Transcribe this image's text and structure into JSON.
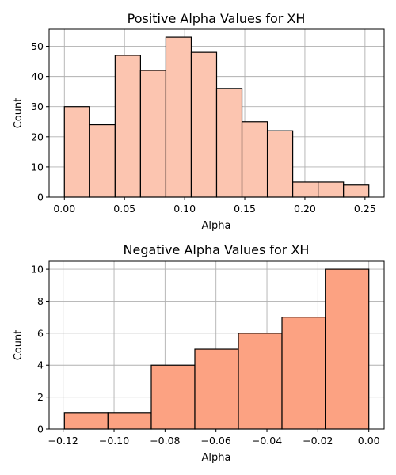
{
  "chart_data": [
    {
      "type": "bar",
      "title": "Positive Alpha Values for XH",
      "xlabel": "Alpha",
      "ylabel": "Count",
      "bin_edges": [
        0.0,
        0.0211,
        0.0422,
        0.0633,
        0.0844,
        0.1055,
        0.1266,
        0.1477,
        0.1688,
        0.1899,
        0.211,
        0.2321,
        0.2532
      ],
      "values": [
        30,
        24,
        47,
        42,
        53,
        48,
        36,
        25,
        22,
        5,
        5,
        4
      ],
      "xlim": [
        -0.0127,
        0.2659
      ],
      "ylim": [
        0,
        55.65
      ],
      "xticks": [
        0.0,
        0.05,
        0.1,
        0.15,
        0.2,
        0.25
      ],
      "xtick_labels": [
        "0.00",
        "0.05",
        "0.10",
        "0.15",
        "0.20",
        "0.25"
      ],
      "yticks": [
        0,
        10,
        20,
        30,
        40,
        50
      ],
      "ytick_labels": [
        "0",
        "10",
        "20",
        "30",
        "40",
        "50"
      ],
      "bar_color": "#fcc5b0",
      "grid": true
    },
    {
      "type": "bar",
      "title": "Negative Alpha Values for XH",
      "xlabel": "Alpha",
      "ylabel": "Count",
      "bin_edges": [
        -0.1195,
        -0.1024,
        -0.0854,
        -0.0683,
        -0.0512,
        -0.0341,
        -0.0171,
        0.0
      ],
      "values": [
        1,
        1,
        4,
        5,
        6,
        7,
        10
      ],
      "xlim": [
        -0.1255,
        0.006
      ],
      "ylim": [
        0,
        10.5
      ],
      "xticks": [
        -0.12,
        -0.1,
        -0.08,
        -0.06,
        -0.04,
        -0.02,
        0.0
      ],
      "xtick_labels": [
        "−0.12",
        "−0.10",
        "−0.08",
        "−0.06",
        "−0.04",
        "−0.02",
        "0.00"
      ],
      "yticks": [
        0,
        2,
        4,
        6,
        8,
        10
      ],
      "ytick_labels": [
        "0",
        "2",
        "4",
        "6",
        "8",
        "10"
      ],
      "bar_color": "#fca282",
      "grid": true
    }
  ]
}
